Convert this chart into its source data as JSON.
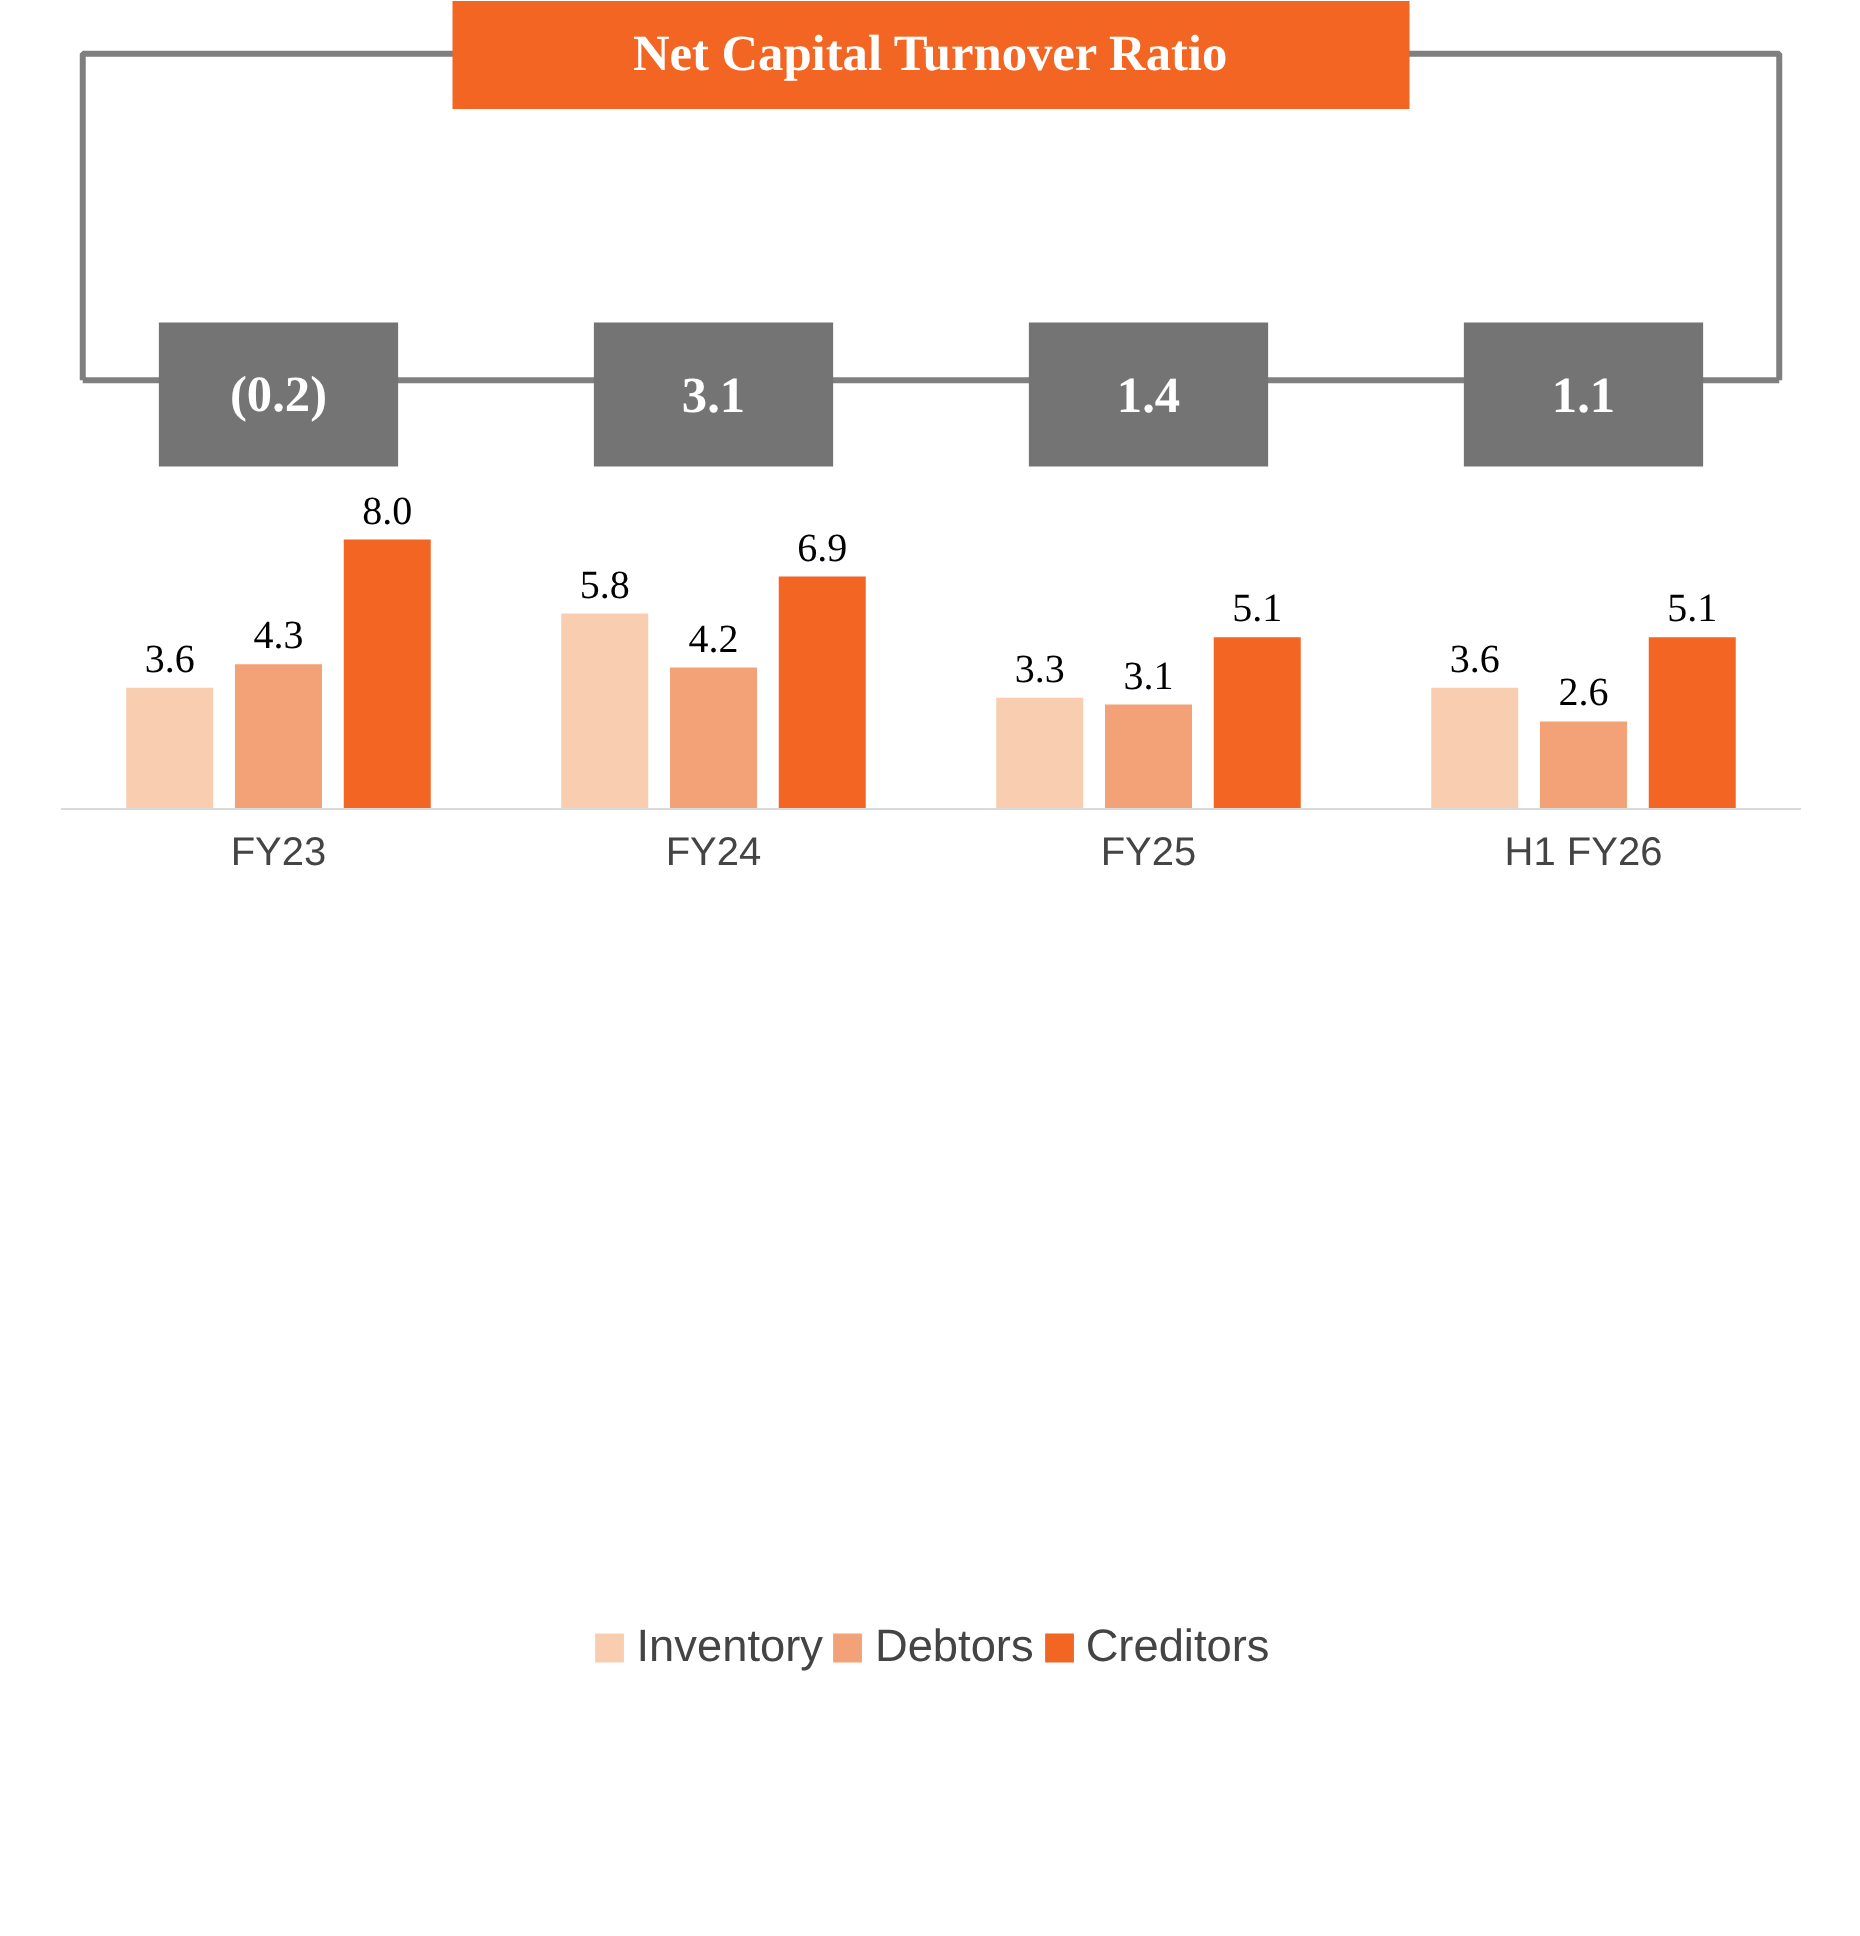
{
  "chart_data": {
    "type": "bar",
    "title": "Net Capital Turnover Ratio",
    "annotations": [
      "(0.2)",
      "3.1",
      "1.4",
      "1.1"
    ],
    "categories": [
      "FY23",
      "FY24",
      "FY25",
      "H1 FY26"
    ],
    "series": [
      {
        "name": "Inventory",
        "color": "#f9cdb0",
        "values": [
          3.6,
          5.8,
          3.3,
          3.6
        ],
        "value_labels": [
          "3.6",
          "5.8",
          "3.3",
          "3.6"
        ]
      },
      {
        "name": "Debtors",
        "color": "#f3a176",
        "values": [
          4.3,
          4.2,
          3.1,
          2.6
        ],
        "value_labels": [
          "4.3",
          "4.2",
          "3.1",
          "2.6"
        ]
      },
      {
        "name": "Creditors",
        "color": "#f26522",
        "values": [
          8.0,
          6.9,
          5.1,
          5.1
        ],
        "value_labels": [
          "8.0",
          "6.9",
          "5.1",
          "5.1"
        ]
      }
    ],
    "legend": "bottom",
    "grid": false,
    "tick_labels": "x"
  }
}
